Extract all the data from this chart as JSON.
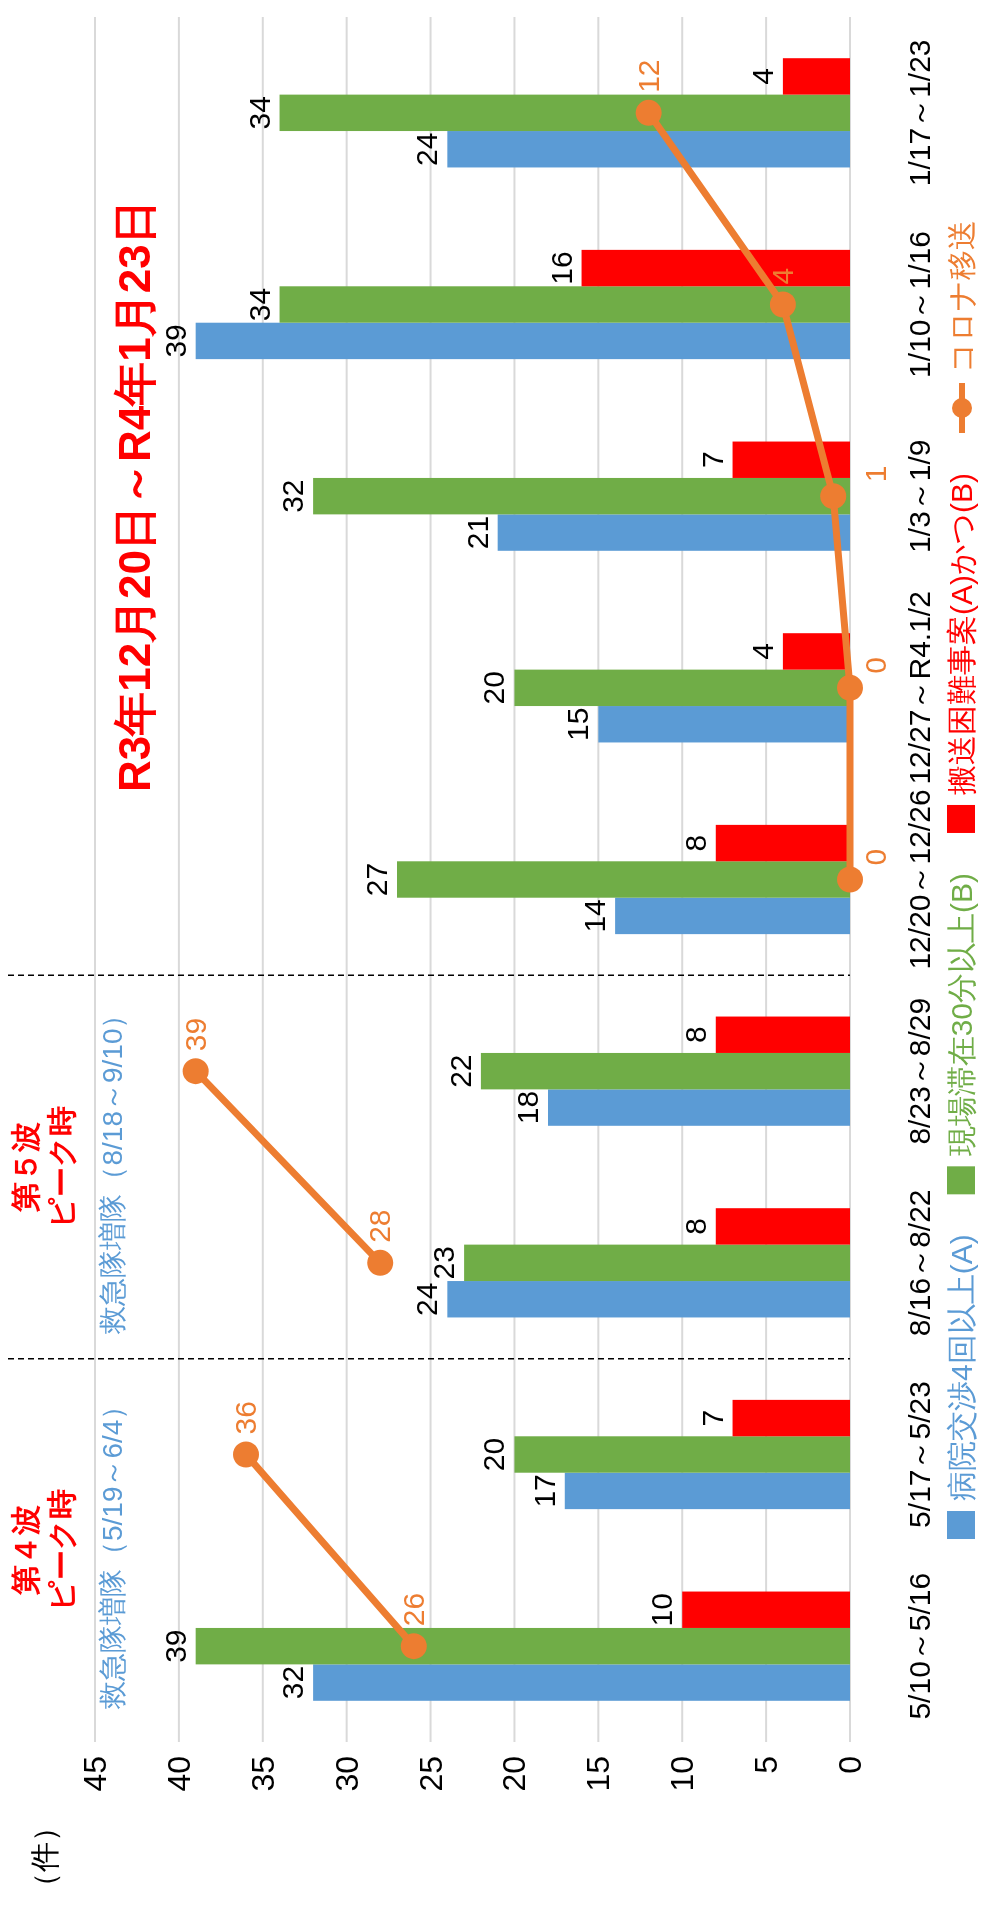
{
  "chart_data": {
    "type": "bar",
    "orientation": "horizontal",
    "categories": [
      "1/17～1/23",
      "1/10～1/16",
      "1/3～1/9",
      "12/27～R4.1/2",
      "12/20～12/26",
      "8/23～8/29",
      "8/16～8/22",
      "5/17～5/23",
      "5/10～5/16"
    ],
    "xlim": [
      45,
      0
    ],
    "xticks": [
      45,
      40,
      35,
      30,
      25,
      20,
      15,
      10,
      5,
      0
    ],
    "grid": "x",
    "legend": "right",
    "data_labels": true,
    "marker": "circle",
    "series": [
      {
        "name": "病院交渉4回以上(A)",
        "color": "#5b9bd5",
        "values": [
          24,
          39,
          21,
          15,
          14,
          18,
          24,
          17,
          32
        ]
      },
      {
        "name": "現場滞在30分以上(B)",
        "color": "#70ad47",
        "values": [
          34,
          34,
          32,
          20,
          27,
          22,
          23,
          20,
          39
        ]
      },
      {
        "name": "搬送困難事案(A)かつ(B)",
        "color": "#ff0000",
        "values": [
          4,
          16,
          7,
          4,
          8,
          8,
          8,
          7,
          10
        ]
      },
      {
        "name": "コロナ移送",
        "type": "line",
        "color": "#ed7d31",
        "values": [
          null,
          null,
          null,
          null,
          null,
          null,
          null,
          36,
          26
        ]
      },
      {
        "type": "line",
        "color": "#ed7d31",
        "values": [
          null,
          null,
          null,
          null,
          null,
          39,
          28,
          null,
          null
        ]
      },
      {
        "type": "line",
        "color": "#ed7d31",
        "values": [
          12,
          4,
          1,
          0,
          0,
          null,
          null,
          null,
          null
        ]
      }
    ],
    "annotations": [
      "第４波",
      "ピーク時",
      "救急隊増隊（5/19～6/4）",
      "第５波",
      "ピーク時",
      "救急隊増隊（8/18～9/10）",
      "R3年12月20日～R4年1月23日",
      "（件）"
    ]
  }
}
